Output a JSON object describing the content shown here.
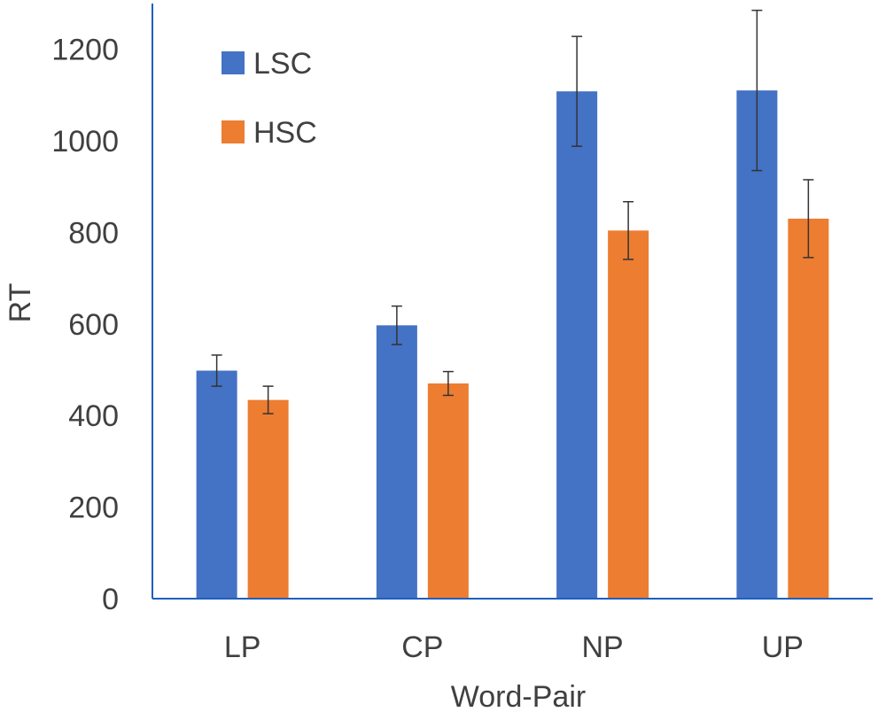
{
  "chart_data": {
    "type": "bar",
    "title": "",
    "xlabel": "Word-Pair",
    "ylabel": "RT",
    "categories": [
      "LP",
      "CP",
      "NP",
      "UP"
    ],
    "ylim": [
      0,
      1200
    ],
    "yticks": [
      0,
      200,
      400,
      600,
      800,
      1000,
      1200
    ],
    "grid": false,
    "legend_position": "top-left",
    "error_bars": true,
    "series": [
      {
        "name": "LSC",
        "color": "#4472C4",
        "values": [
          498,
          597,
          1108,
          1110
        ],
        "errors": [
          34,
          42,
          120,
          175
        ]
      },
      {
        "name": "HSC",
        "color": "#ED7D31",
        "values": [
          434,
          470,
          804,
          830
        ],
        "errors": [
          30,
          26,
          63,
          85
        ]
      }
    ]
  }
}
